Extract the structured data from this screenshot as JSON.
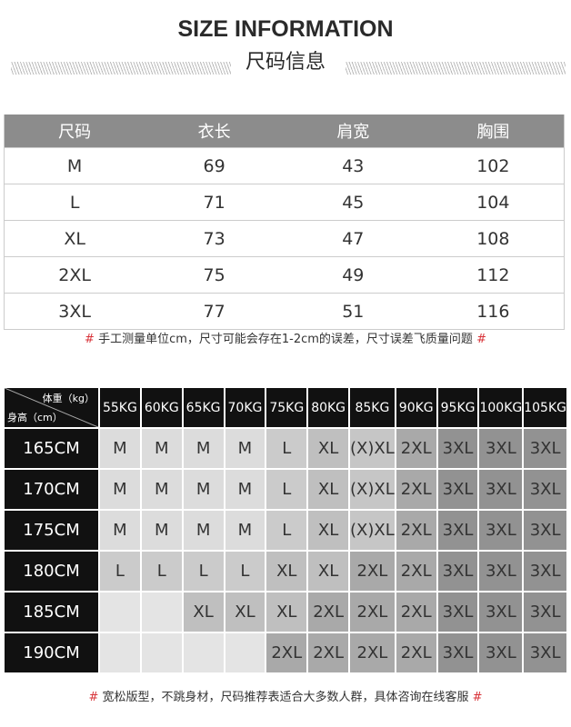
{
  "header": {
    "title": "SIZE INFORMATION",
    "subtitle": "尺码信息"
  },
  "measure_table": {
    "columns": [
      "尺码",
      "衣长",
      "肩宽",
      "胸围"
    ],
    "rows": [
      [
        "M",
        "69",
        "43",
        "102"
      ],
      [
        "L",
        "71",
        "45",
        "104"
      ],
      [
        "XL",
        "73",
        "47",
        "108"
      ],
      [
        "2XL",
        "75",
        "49",
        "112"
      ],
      [
        "3XL",
        "77",
        "51",
        "116"
      ]
    ]
  },
  "note1": {
    "hash": "#",
    "text": "手工测量单位cm，尺寸可能会存在1-2cm的误差，尺寸误差飞质量问题"
  },
  "recommend_table": {
    "corner_weight": "体重（kg）",
    "corner_height": "身高（cm）",
    "weights": [
      "55KG",
      "60KG",
      "65KG",
      "70KG",
      "75KG",
      "80KG",
      "85KG",
      "90KG",
      "95KG",
      "100KG",
      "105KG"
    ],
    "rows": [
      {
        "height": "165CM",
        "sizes": [
          "M",
          "M",
          "M",
          "M",
          "L",
          "XL",
          "(X)XL",
          "2XL",
          "3XL",
          "3XL",
          "3XL"
        ]
      },
      {
        "height": "170CM",
        "sizes": [
          "M",
          "M",
          "M",
          "M",
          "L",
          "XL",
          "(X)XL",
          "2XL",
          "3XL",
          "3XL",
          "3XL"
        ]
      },
      {
        "height": "175CM",
        "sizes": [
          "M",
          "M",
          "M",
          "M",
          "L",
          "XL",
          "(X)XL",
          "2XL",
          "3XL",
          "3XL",
          "3XL"
        ]
      },
      {
        "height": "180CM",
        "sizes": [
          "L",
          "L",
          "L",
          "L",
          "XL",
          "XL",
          "2XL",
          "2XL",
          "3XL",
          "3XL",
          "3XL"
        ]
      },
      {
        "height": "185CM",
        "sizes": [
          "",
          "",
          "XL",
          "XL",
          "XL",
          "2XL",
          "2XL",
          "2XL",
          "3XL",
          "3XL",
          "3XL"
        ]
      },
      {
        "height": "190CM",
        "sizes": [
          "",
          "",
          "",
          "",
          "2XL",
          "2XL",
          "2XL",
          "2XL",
          "3XL",
          "3XL",
          "3XL"
        ]
      }
    ],
    "size_colors": {
      "": "#e4e4e4",
      "M": "#dcdcdc",
      "L": "#cbcbcb",
      "XL": "#bfbfbf",
      "(X)XL": "#c6c6c6",
      "2XL": "#a9a9a9",
      "3XL": "#929292"
    }
  },
  "note2": {
    "hash": "#",
    "text": "宽松版型，不跳身材，尺码推荐表适合大多数人群，具体咨询在线客服"
  }
}
